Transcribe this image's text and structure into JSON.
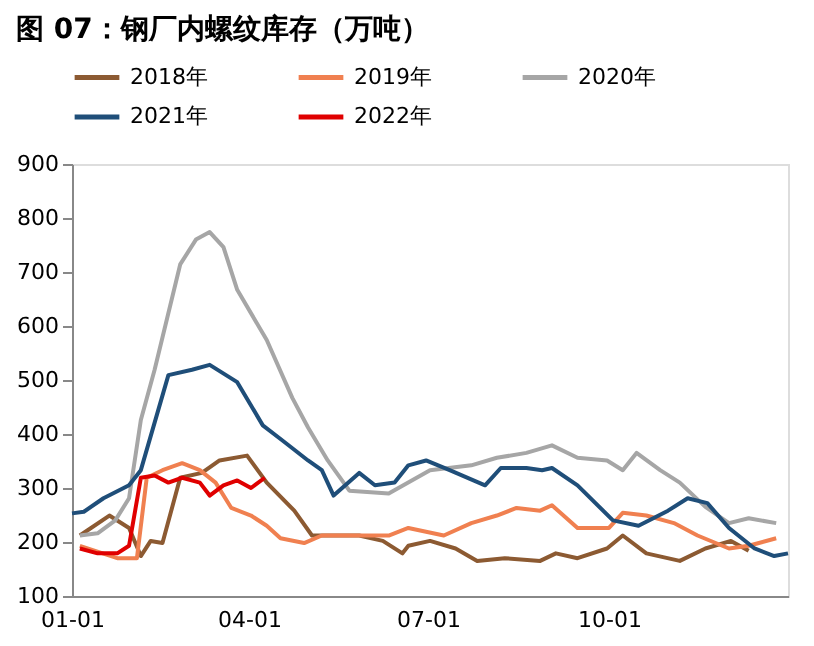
{
  "chart_data": {
    "type": "line",
    "title": "图 07：钢厂内螺纹库存（万吨）",
    "xlim": [
      "--01-01",
      "--12-31"
    ],
    "xticks": [
      {
        "value": "--01-01",
        "label": "01-01"
      },
      {
        "value": "--04-01",
        "label": "04-01"
      },
      {
        "value": "--07-01",
        "label": "07-01"
      },
      {
        "value": "--10-01",
        "label": "10-01"
      }
    ],
    "ylim": [
      100,
      900
    ],
    "yticks": [
      100,
      200,
      300,
      400,
      500,
      600,
      700,
      800,
      900
    ],
    "grid": false,
    "legend": "top",
    "marker": "none",
    "line_style": "solid",
    "series": [
      {
        "name": "2018年",
        "color": "#8c5a32",
        "x": [
          "--01-05",
          "--01-20",
          "--01-30",
          "--02-05",
          "--02-10",
          "--02-16",
          "--02-25",
          "--03-08",
          "--03-17",
          "--03-31",
          "--04-10",
          "--04-24",
          "--05-03",
          "--05-14",
          "--05-27",
          "--06-08",
          "--06-18",
          "--06-21",
          "--07-02",
          "--07-15",
          "--07-26",
          "--08-09",
          "--08-27",
          "--09-04",
          "--09-15",
          "--09-30",
          "--10-08",
          "--10-20",
          "--11-06",
          "--11-19",
          "--12-02",
          "--12-11"
        ],
        "values": [
          212,
          249,
          226,
          174,
          202,
          198,
          319,
          328,
          351,
          360,
          310,
          258,
          212,
          212,
          212,
          202,
          179,
          193,
          202,
          188,
          165,
          170,
          165,
          179,
          170,
          188,
          212,
          179,
          165,
          188,
          202,
          184
        ]
      },
      {
        "name": "2019年",
        "color": "#f08050",
        "x": [
          "--01-05",
          "--01-24",
          "--02-03",
          "--02-08",
          "--02-16",
          "--02-26",
          "--03-07",
          "--03-15",
          "--03-23",
          "--04-02",
          "--04-10",
          "--04-17",
          "--04-29",
          "--05-08",
          "--05-25",
          "--06-11",
          "--06-21",
          "--07-09",
          "--07-23",
          "--08-05",
          "--08-15",
          "--08-27",
          "--09-02",
          "--09-15",
          "--10-01",
          "--10-08",
          "--10-20",
          "--11-03",
          "--11-15",
          "--12-01",
          "--12-11",
          "--12-25"
        ],
        "values": [
          193,
          170,
          170,
          319,
          333,
          346,
          333,
          310,
          263,
          249,
          230,
          207,
          198,
          212,
          212,
          212,
          226,
          212,
          235,
          249,
          263,
          258,
          268,
          226,
          226,
          254,
          249,
          235,
          212,
          188,
          193,
          207
        ]
      },
      {
        "name": "2020年",
        "color": "#a6a6a6",
        "x": [
          "--01-05",
          "--01-14",
          "--01-23",
          "--01-30",
          "--02-05",
          "--02-12",
          "--02-25",
          "--03-05",
          "--03-12",
          "--03-19",
          "--03-26",
          "--04-10",
          "--04-23",
          "--05-01",
          "--05-11",
          "--05-22",
          "--06-11",
          "--07-02",
          "--07-23",
          "--08-05",
          "--08-20",
          "--09-02",
          "--09-15",
          "--09-30",
          "--10-08",
          "--10-15",
          "--10-27",
          "--11-06",
          "--11-19",
          "--12-01",
          "--12-11",
          "--12-25"
        ],
        "values": [
          212,
          216,
          240,
          281,
          426,
          519,
          714,
          760,
          774,
          746,
          667,
          574,
          467,
          412,
          351,
          295,
          290,
          333,
          342,
          356,
          365,
          379,
          356,
          351,
          333,
          365,
          333,
          310,
          265,
          235,
          244,
          235
        ]
      },
      {
        "name": "2021年",
        "color": "#1f4e79",
        "x": [
          "--01-01",
          "--01-07",
          "--01-17",
          "--01-30",
          "--02-05",
          "--02-19",
          "--03-03",
          "--03-12",
          "--03-26",
          "--04-08",
          "--04-18",
          "--05-01",
          "--05-08",
          "--05-14",
          "--05-27",
          "--06-04",
          "--06-14",
          "--06-21",
          "--06-30",
          "--07-12",
          "--07-30",
          "--08-07",
          "--08-20",
          "--08-28",
          "--09-02",
          "--09-15",
          "--10-03",
          "--10-16",
          "--10-31",
          "--11-10",
          "--11-20",
          "--12-01",
          "--12-14",
          "--12-24",
          "--12-31"
        ],
        "values": [
          253,
          256,
          281,
          305,
          333,
          509,
          519,
          528,
          496,
          416,
          388,
          351,
          333,
          286,
          328,
          305,
          310,
          342,
          351,
          333,
          305,
          337,
          337,
          333,
          337,
          305,
          240,
          230,
          258,
          281,
          272,
          226,
          188,
          174,
          179
        ]
      },
      {
        "name": "2022年",
        "color": "#e00000",
        "x": [
          "--01-05",
          "--01-14",
          "--01-24",
          "--01-30",
          "--02-05",
          "--02-12",
          "--02-19",
          "--02-26",
          "--03-07",
          "--03-12",
          "--03-19",
          "--03-26",
          "--04-02",
          "--04-09"
        ],
        "values": [
          188,
          179,
          179,
          193,
          319,
          323,
          310,
          319,
          310,
          286,
          305,
          314,
          300,
          319
        ]
      }
    ]
  }
}
